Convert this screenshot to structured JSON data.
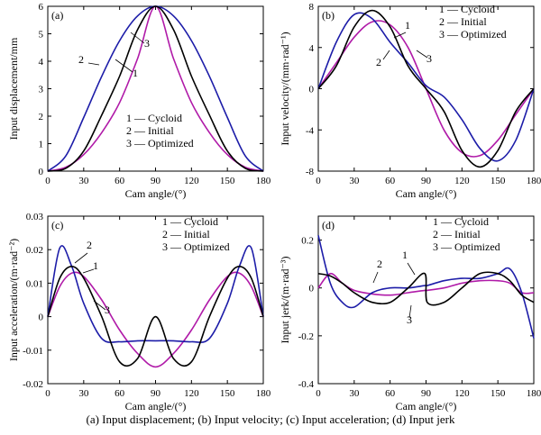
{
  "caption": "(a) Input displacement; (b) Input velocity; (c) Input acceleration; (d) Input jerk",
  "colors": {
    "Cycloid": "#000000",
    "Initial": "#b01aa8",
    "Optimized": "#1c1ca8"
  },
  "chart_data": [
    {
      "type": "line",
      "panel": "(a)",
      "xlabel": "Cam angle/(°)",
      "ylabel": "Input displacement/mm",
      "xlim": [
        0,
        180
      ],
      "ylim": [
        0,
        6
      ],
      "xticks": [
        0,
        30,
        60,
        90,
        120,
        150,
        180
      ],
      "yticks": [
        0,
        1,
        2,
        3,
        4,
        5,
        6
      ],
      "legend": [
        "1 — Cycloid",
        "2 — Initial",
        "3 — Optimized"
      ],
      "legend_position": "lower-center",
      "curve_labels": [
        "1",
        "2",
        "3"
      ],
      "x": [
        0,
        15,
        30,
        45,
        60,
        75,
        90,
        105,
        120,
        135,
        150,
        165,
        180
      ],
      "series": [
        {
          "name": "Cycloid",
          "values": [
            0,
            0.1,
            0.73,
            2.04,
            3.46,
            5.15,
            6.0,
            5.15,
            3.46,
            2.04,
            0.73,
            0.1,
            0
          ]
        },
        {
          "name": "Initial",
          "values": [
            0,
            0.14,
            0.6,
            1.4,
            2.5,
            4.1,
            6.0,
            4.1,
            2.5,
            1.4,
            0.6,
            0.14,
            0
          ]
        },
        {
          "name": "Optimized",
          "values": [
            0,
            0.55,
            1.95,
            3.45,
            4.75,
            5.65,
            6.0,
            5.65,
            4.75,
            3.45,
            1.95,
            0.55,
            0
          ]
        }
      ]
    },
    {
      "type": "line",
      "panel": "(b)",
      "xlabel": "Cam angle/(°)",
      "ylabel": "Input velocity/(mm·rad⁻¹)",
      "xlim": [
        0,
        180
      ],
      "ylim": [
        -8,
        8
      ],
      "xticks": [
        0,
        30,
        60,
        90,
        120,
        150,
        180
      ],
      "yticks": [
        -8,
        -4,
        0,
        4,
        8
      ],
      "legend": [
        "1 — Cycloid",
        "2 — Initial",
        "3 — Optimized"
      ],
      "legend_position": "top-right",
      "curve_labels": [
        "1",
        "2",
        "3"
      ],
      "x": [
        0,
        15,
        30,
        45,
        60,
        75,
        90,
        105,
        120,
        135,
        150,
        165,
        180
      ],
      "series": [
        {
          "name": "Cycloid",
          "values": [
            0,
            2.2,
            6.0,
            7.6,
            6.0,
            2.2,
            0,
            -2.2,
            -6.0,
            -7.6,
            -6.0,
            -2.2,
            0
          ]
        },
        {
          "name": "Initial",
          "values": [
            0,
            2.5,
            5.0,
            6.5,
            6.2,
            4.0,
            0,
            -4.0,
            -6.2,
            -6.5,
            -5.0,
            -2.5,
            0
          ]
        },
        {
          "name": "Optimized",
          "values": [
            0,
            4.5,
            7.2,
            6.8,
            4.5,
            2.5,
            0.3,
            -0.8,
            -3.0,
            -5.8,
            -7.0,
            -5.0,
            0
          ]
        }
      ]
    },
    {
      "type": "line",
      "panel": "(c)",
      "xlabel": "Cam angle/(°)",
      "ylabel": "Input acceleration/(m·rad⁻²)",
      "xlim": [
        0,
        180
      ],
      "ylim": [
        -0.02,
        0.03
      ],
      "xticks": [
        0,
        30,
        60,
        90,
        120,
        150,
        180
      ],
      "yticks": [
        -0.02,
        -0.01,
        0,
        0.01,
        0.02,
        0.03
      ],
      "legend": [
        "1 — Cycloid",
        "2 — Initial",
        "3 — Optimized"
      ],
      "legend_position": "top-right",
      "curve_labels": [
        "1",
        "2",
        "3"
      ],
      "x": [
        0,
        10,
        20,
        30,
        45,
        60,
        75,
        90,
        105,
        120,
        135,
        150,
        160,
        170,
        180
      ],
      "series": [
        {
          "name": "Cycloid",
          "values": [
            0,
            0.0115,
            0.015,
            0.0115,
            0,
            -0.0135,
            -0.0125,
            0,
            -0.0125,
            -0.0135,
            0,
            0.0115,
            0.015,
            0.0115,
            0
          ]
        },
        {
          "name": "Initial",
          "values": [
            0,
            0.009,
            0.013,
            0.012,
            0.005,
            -0.004,
            -0.011,
            -0.015,
            -0.011,
            -0.004,
            0.005,
            0.012,
            0.013,
            0.009,
            0
          ]
        },
        {
          "name": "Optimized",
          "values": [
            0,
            0.0205,
            0.015,
            0.004,
            -0.0065,
            -0.0075,
            -0.0072,
            -0.0072,
            -0.0072,
            -0.0075,
            -0.0065,
            0.004,
            0.015,
            0.0205,
            0
          ]
        }
      ]
    },
    {
      "type": "line",
      "panel": "(d)",
      "xlabel": "Cam angle/(°)",
      "ylabel": "Input jerk/(m·rad⁻³)",
      "xlim": [
        0,
        180
      ],
      "ylim": [
        -0.4,
        0.3
      ],
      "xticks": [
        0,
        30,
        60,
        90,
        120,
        150,
        180
      ],
      "yticks": [
        -0.4,
        -0.2,
        0,
        0.2
      ],
      "legend": [
        "1 — Cycloid",
        "2 — Initial",
        "3 — Optimized"
      ],
      "legend_position": "top-right",
      "curve_labels": [
        "1",
        "2",
        "3"
      ],
      "x": [
        0,
        10,
        20,
        30,
        45,
        60,
        75,
        89,
        91,
        105,
        120,
        135,
        150,
        160,
        170,
        180
      ],
      "series": [
        {
          "name": "Cycloid",
          "values": [
            0.06,
            0.05,
            0.02,
            -0.02,
            -0.06,
            -0.06,
            0.0,
            0.06,
            -0.06,
            -0.06,
            0.0,
            0.06,
            0.06,
            0.03,
            -0.03,
            -0.06
          ]
        },
        {
          "name": "Initial",
          "values": [
            0.0,
            0.06,
            0.02,
            -0.01,
            -0.025,
            -0.03,
            -0.02,
            -0.01,
            -0.01,
            0.0,
            0.02,
            0.03,
            0.03,
            0.02,
            -0.02,
            -0.02
          ]
        },
        {
          "name": "Optimized",
          "values": [
            0.22,
            0.02,
            -0.06,
            -0.08,
            -0.02,
            0.0,
            0.0,
            0.01,
            0.01,
            0.03,
            0.04,
            0.04,
            0.06,
            0.08,
            -0.02,
            -0.21
          ]
        }
      ]
    }
  ]
}
